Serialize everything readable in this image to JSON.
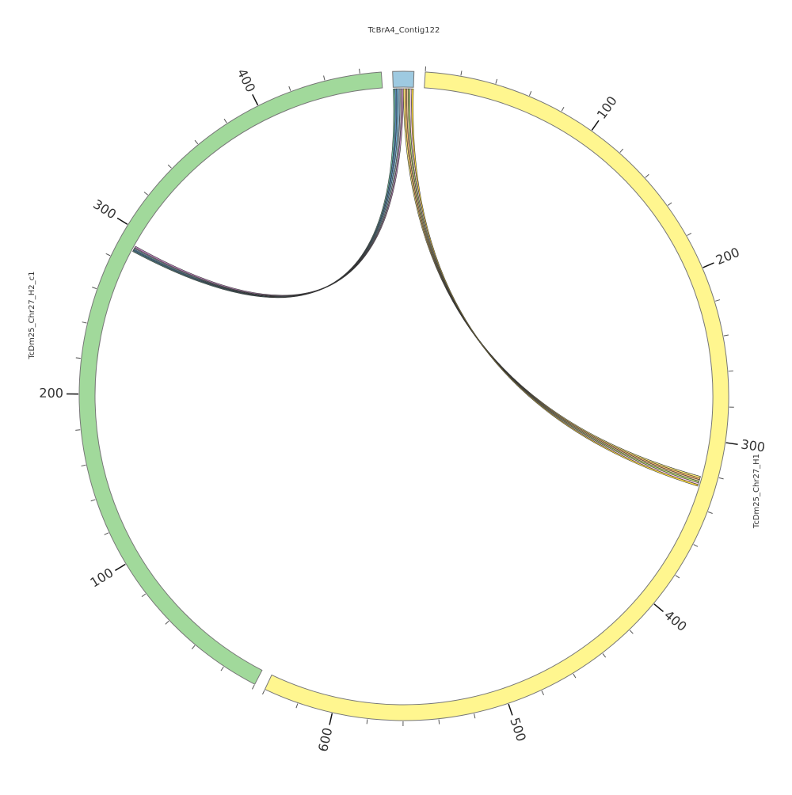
{
  "chart_data": {
    "type": "circos",
    "segments": [
      {
        "name": "TcBrA4_Contig122",
        "length": 12,
        "color": "#9ecae1",
        "ticks": [],
        "labeled_ticks": []
      },
      {
        "name": "TcDm25_Chr27_H1",
        "length": 640,
        "color": "#fff68f",
        "ticks": [
          0,
          20,
          40,
          60,
          80,
          100,
          120,
          140,
          160,
          180,
          200,
          220,
          240,
          260,
          280,
          300,
          320,
          340,
          360,
          380,
          400,
          420,
          440,
          460,
          480,
          500,
          520,
          540,
          560,
          580,
          600,
          620,
          640
        ],
        "labeled_ticks": [
          100,
          200,
          300,
          400,
          500,
          600
        ]
      },
      {
        "name": "TcDm25_Chr27_H2_c1",
        "length": 472,
        "color": "#a1d99b",
        "ticks": [
          0,
          20,
          40,
          60,
          80,
          100,
          120,
          140,
          160,
          180,
          200,
          220,
          240,
          260,
          280,
          300,
          320,
          340,
          360,
          380,
          400,
          420,
          440,
          460
        ],
        "labeled_ticks": [
          100,
          200,
          300,
          400
        ]
      }
    ],
    "links": [
      {
        "source": 0,
        "source_range": [
          0,
          1
        ],
        "target": 2,
        "target_range": [
          288,
          289
        ],
        "color": "#66c2a5"
      },
      {
        "source": 0,
        "source_range": [
          1,
          2
        ],
        "target": 2,
        "target_range": [
          288.5,
          289.5
        ],
        "color": "#4a7fb5"
      },
      {
        "source": 0,
        "source_range": [
          2,
          3
        ],
        "target": 2,
        "target_range": [
          289,
          290
        ],
        "color": "#5fa8d3"
      },
      {
        "source": 0,
        "source_range": [
          3,
          4
        ],
        "target": 2,
        "target_range": [
          289.5,
          290.5
        ],
        "color": "#9ecae1"
      },
      {
        "source": 0,
        "source_range": [
          4,
          5
        ],
        "target": 2,
        "target_range": [
          290,
          291
        ],
        "color": "#b3b3b3"
      },
      {
        "source": 0,
        "source_range": [
          5,
          6
        ],
        "target": 2,
        "target_range": [
          290.5,
          291.5
        ],
        "color": "#bc80bd"
      },
      {
        "source": 0,
        "source_range": [
          6,
          7
        ],
        "target": 1,
        "target_range": [
          322,
          323
        ],
        "color": "#ffed6f"
      },
      {
        "source": 0,
        "source_range": [
          7,
          8
        ],
        "target": 1,
        "target_range": [
          323,
          324
        ],
        "color": "#fdb462"
      },
      {
        "source": 0,
        "source_range": [
          8,
          9
        ],
        "target": 1,
        "target_range": [
          324,
          325
        ],
        "color": "#e5c494"
      },
      {
        "source": 0,
        "source_range": [
          9,
          10
        ],
        "target": 1,
        "target_range": [
          325,
          326
        ],
        "color": "#b3de69"
      },
      {
        "source": 0,
        "source_range": [
          10,
          11
        ],
        "target": 1,
        "target_range": [
          326,
          327
        ],
        "color": "#fccde5"
      },
      {
        "source": 0,
        "source_range": [
          11,
          12
        ],
        "target": 1,
        "target_range": [
          327,
          328
        ],
        "color": "#ffd92f"
      }
    ]
  }
}
